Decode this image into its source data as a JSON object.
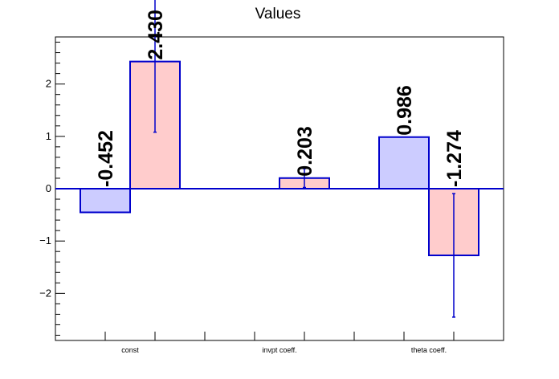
{
  "chart_data": {
    "type": "bar",
    "title": "Values",
    "xlabel": "",
    "ylabel": "",
    "categories": [
      "const",
      "invpt coeff.",
      "theta coeff."
    ],
    "ylim": [
      -2.9,
      2.9
    ],
    "yticks": [
      -2,
      -1,
      0,
      1,
      2
    ],
    "ytick_labels": [
      "−2",
      "−1",
      "0",
      "1",
      "2"
    ],
    "grid": false,
    "series": [
      {
        "values": [
          -0.452,
          0.0,
          0.986
        ],
        "errors": [
          0.0,
          0.0,
          0.0
        ],
        "labels": [
          "-0.452",
          "",
          "0.986"
        ],
        "color": "#ccccff"
      },
      {
        "values": [
          2.43,
          0.203,
          -1.274
        ],
        "errors": [
          1.35,
          0.18,
          1.18
        ],
        "labels": [
          "2.430",
          "0.203",
          "-1.274"
        ],
        "color": "#ffcccc"
      }
    ],
    "edge_color": "#0000cc",
    "zero_line_color": "#0000cc"
  }
}
